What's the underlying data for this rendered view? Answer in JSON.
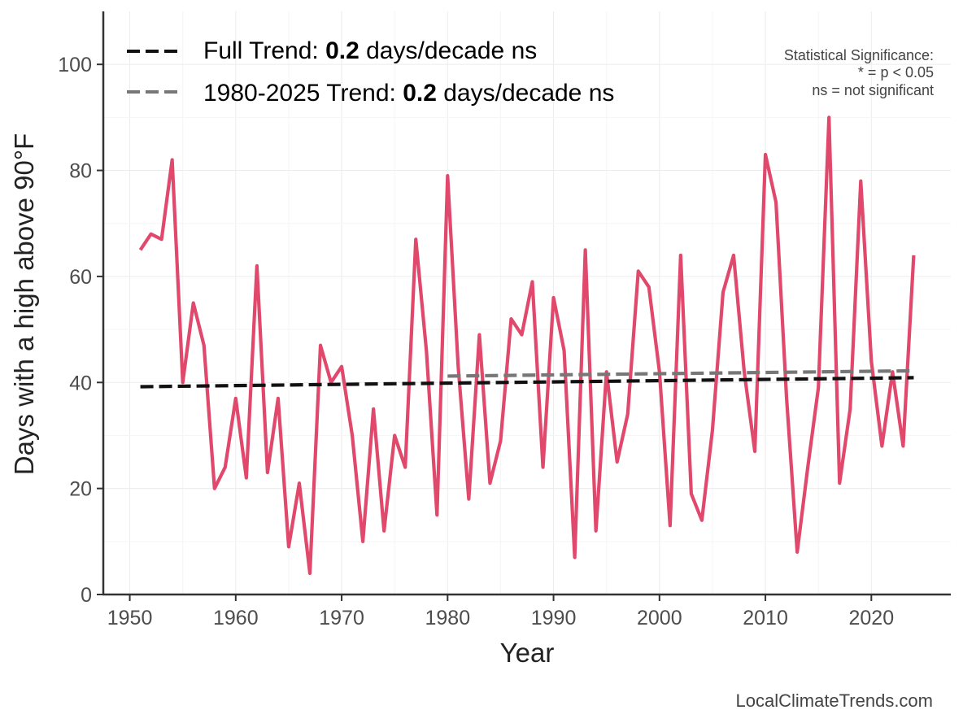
{
  "chart_data": {
    "type": "line",
    "xlabel": "Year",
    "ylabel": "Days with a high above 90°F",
    "xlim": [
      1947.5,
      2027.5
    ],
    "ylim": [
      0,
      110
    ],
    "x_ticks": [
      1950,
      1960,
      1970,
      1980,
      1990,
      2000,
      2010,
      2020
    ],
    "y_ticks": [
      0,
      20,
      40,
      60,
      80,
      100
    ],
    "grid": true,
    "series": [
      {
        "name": "Days with a high above 90°F",
        "color": "#e0486c",
        "style": "solid",
        "x": [
          1951,
          1952,
          1953,
          1954,
          1955,
          1956,
          1957,
          1958,
          1959,
          1960,
          1961,
          1962,
          1963,
          1964,
          1965,
          1966,
          1967,
          1968,
          1969,
          1970,
          1971,
          1972,
          1973,
          1974,
          1975,
          1976,
          1977,
          1978,
          1979,
          1980,
          1981,
          1982,
          1983,
          1984,
          1985,
          1986,
          1987,
          1988,
          1989,
          1990,
          1991,
          1992,
          1993,
          1994,
          1995,
          1996,
          1997,
          1998,
          1999,
          2000,
          2001,
          2002,
          2003,
          2004,
          2005,
          2006,
          2007,
          2008,
          2009,
          2010,
          2011,
          2012,
          2013,
          2014,
          2015,
          2016,
          2017,
          2018,
          2019,
          2020,
          2021,
          2022,
          2023,
          2024
        ],
        "values": [
          65,
          68,
          67,
          82,
          40,
          55,
          47,
          20,
          24,
          37,
          22,
          62,
          23,
          37,
          9,
          21,
          4,
          47,
          40,
          43,
          30,
          10,
          35,
          12,
          30,
          24,
          67,
          46,
          15,
          79,
          43,
          18,
          49,
          21,
          29,
          52,
          49,
          59,
          24,
          56,
          46,
          7,
          65,
          12,
          42,
          25,
          34,
          61,
          58,
          42,
          13,
          64,
          19,
          14,
          31,
          57,
          64,
          42,
          27,
          83,
          74,
          37,
          8,
          24,
          39,
          90,
          21,
          35,
          78,
          44,
          28,
          42,
          28,
          64
        ]
      },
      {
        "name": "Full Trend",
        "color": "#111111",
        "style": "dashed",
        "x": [
          1951,
          2024
        ],
        "values": [
          39.2,
          40.9
        ]
      },
      {
        "name": "1980-2025 Trend",
        "color": "#777777",
        "style": "dashed",
        "x": [
          1980,
          2024
        ],
        "values": [
          41.2,
          42.2
        ]
      }
    ],
    "legend": {
      "position": "top-left",
      "entries": [
        {
          "prefix": "Full Trend: ",
          "value": "0.2",
          "suffix": " days/decade ns",
          "color": "#111111"
        },
        {
          "prefix": "1980-2025 Trend: ",
          "value": "0.2",
          "suffix": " days/decade ns",
          "color": "#777777"
        }
      ]
    },
    "significance_note": {
      "title": "Statistical Significance:",
      "line1": "* = p < 0.05",
      "line2": "ns = not significant"
    },
    "credit": "LocalClimateTrends.com"
  }
}
